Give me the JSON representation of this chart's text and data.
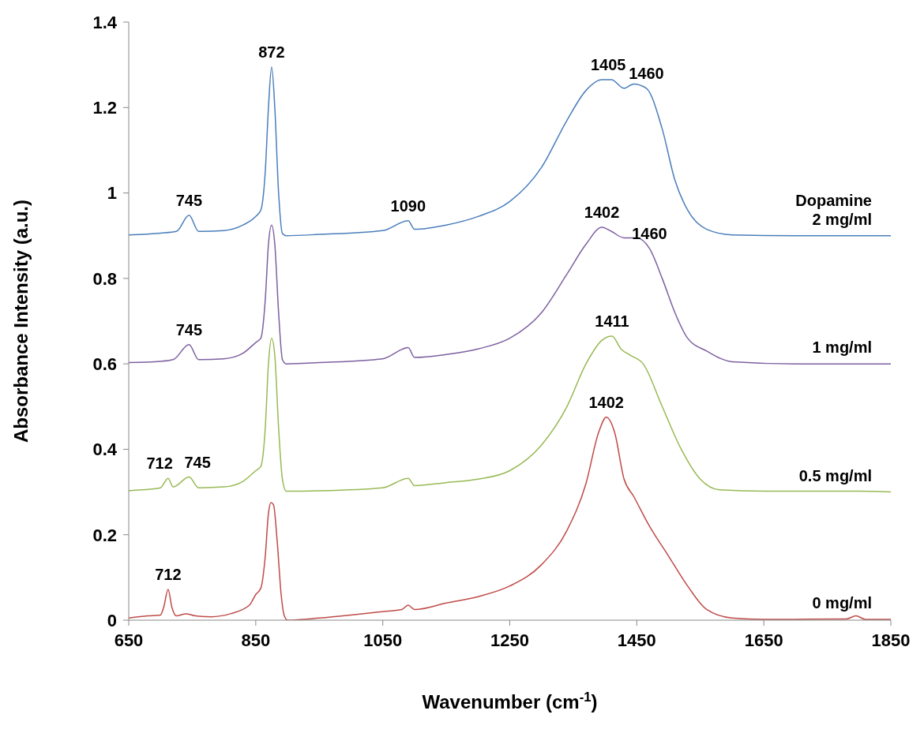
{
  "chart_data": {
    "type": "line",
    "xlabel": "Wavenumber (cm$^{-1}$)",
    "ylabel": "Absorbance Intensity (a.u.)",
    "xlim": [
      650,
      1850
    ],
    "xticks": [
      650,
      850,
      1050,
      1250,
      1450,
      1650,
      1850
    ],
    "ylim": [
      0,
      1.4
    ],
    "yticks": [
      0,
      0.2,
      0.4,
      0.6,
      0.8,
      1,
      1.2,
      1.4
    ],
    "marker": "none",
    "line_style": "solid",
    "series": [
      {
        "name": "Dopamine\n2 mg/ml",
        "color": "#4a7ebb",
        "x": [
          650,
          700,
          725,
          745,
          760,
          800,
          830,
          850,
          858,
          865,
          870,
          875,
          880,
          886,
          892,
          898,
          950,
          1050,
          1090,
          1100,
          1150,
          1200,
          1250,
          1300,
          1340,
          1370,
          1395,
          1410,
          1430,
          1445,
          1465,
          1490,
          1510,
          1530,
          1560,
          1600,
          1700,
          1850
        ],
        "values": [
          0.902,
          0.906,
          0.91,
          0.948,
          0.91,
          0.912,
          0.925,
          0.945,
          0.96,
          1.05,
          1.2,
          1.295,
          1.2,
          1.0,
          0.905,
          0.9,
          0.903,
          0.912,
          0.935,
          0.915,
          0.925,
          0.945,
          0.98,
          1.06,
          1.17,
          1.24,
          1.265,
          1.265,
          1.245,
          1.255,
          1.245,
          1.15,
          1.03,
          0.96,
          0.915,
          0.902,
          0.9,
          0.9
        ]
      },
      {
        "name": "1 mg/ml",
        "color": "#7d60a0",
        "x": [
          650,
          700,
          720,
          745,
          760,
          800,
          830,
          850,
          858,
          865,
          870,
          875,
          880,
          886,
          892,
          898,
          950,
          1050,
          1090,
          1100,
          1150,
          1200,
          1250,
          1300,
          1340,
          1370,
          1395,
          1410,
          1430,
          1450,
          1470,
          1490,
          1510,
          1530,
          1560,
          1600,
          1700,
          1850
        ],
        "values": [
          0.603,
          0.606,
          0.61,
          0.645,
          0.61,
          0.612,
          0.625,
          0.65,
          0.66,
          0.75,
          0.88,
          0.925,
          0.88,
          0.72,
          0.61,
          0.6,
          0.603,
          0.612,
          0.638,
          0.615,
          0.622,
          0.635,
          0.66,
          0.72,
          0.81,
          0.88,
          0.92,
          0.91,
          0.895,
          0.895,
          0.87,
          0.8,
          0.72,
          0.66,
          0.63,
          0.605,
          0.6,
          0.6
        ]
      },
      {
        "name": "0.5 mg/ml",
        "color": "#98b954",
        "x": [
          650,
          670,
          700,
          712,
          720,
          745,
          760,
          800,
          830,
          850,
          858,
          865,
          870,
          875,
          880,
          886,
          892,
          898,
          950,
          1050,
          1090,
          1100,
          1150,
          1200,
          1250,
          1300,
          1340,
          1370,
          1395,
          1411,
          1425,
          1440,
          1460,
          1490,
          1520,
          1550,
          1580,
          1650,
          1800,
          1850
        ],
        "values": [
          0.303,
          0.305,
          0.31,
          0.332,
          0.312,
          0.335,
          0.31,
          0.312,
          0.325,
          0.35,
          0.36,
          0.45,
          0.6,
          0.66,
          0.62,
          0.45,
          0.33,
          0.302,
          0.303,
          0.31,
          0.332,
          0.315,
          0.322,
          0.33,
          0.35,
          0.41,
          0.5,
          0.6,
          0.655,
          0.665,
          0.635,
          0.62,
          0.6,
          0.5,
          0.4,
          0.33,
          0.305,
          0.302,
          0.302,
          0.3
        ]
      },
      {
        "name": "0 mg/ml",
        "color": "#be4b48",
        "x": [
          650,
          680,
          700,
          705,
          712,
          718,
          725,
          740,
          755,
          780,
          810,
          840,
          850,
          858,
          865,
          870,
          874,
          878,
          884,
          890,
          895,
          900,
          950,
          1000,
          1050,
          1080,
          1090,
          1100,
          1150,
          1200,
          1250,
          1300,
          1340,
          1370,
          1390,
          1402,
          1415,
          1430,
          1445,
          1470,
          1500,
          1530,
          1560,
          1600,
          1650,
          1700,
          1780,
          1795,
          1810,
          1850
        ],
        "values": [
          0.005,
          0.01,
          0.012,
          0.03,
          0.072,
          0.03,
          0.01,
          0.015,
          0.01,
          0.008,
          0.015,
          0.035,
          0.06,
          0.075,
          0.15,
          0.25,
          0.275,
          0.27,
          0.18,
          0.06,
          0.01,
          0.0,
          0.005,
          0.012,
          0.02,
          0.025,
          0.035,
          0.025,
          0.04,
          0.055,
          0.08,
          0.13,
          0.21,
          0.32,
          0.44,
          0.475,
          0.44,
          0.33,
          0.29,
          0.22,
          0.15,
          0.08,
          0.025,
          0.005,
          0.002,
          0.002,
          0.003,
          0.01,
          0.002,
          0.002
        ]
      }
    ],
    "annotations": [
      {
        "text": "872",
        "x": 875,
        "y": 1.295
      },
      {
        "text": "745",
        "x": 745,
        "y": 0.948
      },
      {
        "text": "1090",
        "x": 1090,
        "y": 0.935
      },
      {
        "text": "1405",
        "x": 1405,
        "y": 1.265
      },
      {
        "text": "1460",
        "x": 1465,
        "y": 1.245
      },
      {
        "text": "745",
        "x": 745,
        "y": 0.645
      },
      {
        "text": "1402",
        "x": 1395,
        "y": 0.92
      },
      {
        "text": "1460",
        "x": 1470,
        "y": 0.87
      },
      {
        "text": "1411",
        "x": 1411,
        "y": 0.665
      },
      {
        "text": "712",
        "x": 712,
        "y": 0.332
      },
      {
        "text": "745",
        "x": 745,
        "y": 0.335
      },
      {
        "text": "1402",
        "x": 1402,
        "y": 0.475
      },
      {
        "text": "712",
        "x": 712,
        "y": 0.072
      }
    ]
  }
}
